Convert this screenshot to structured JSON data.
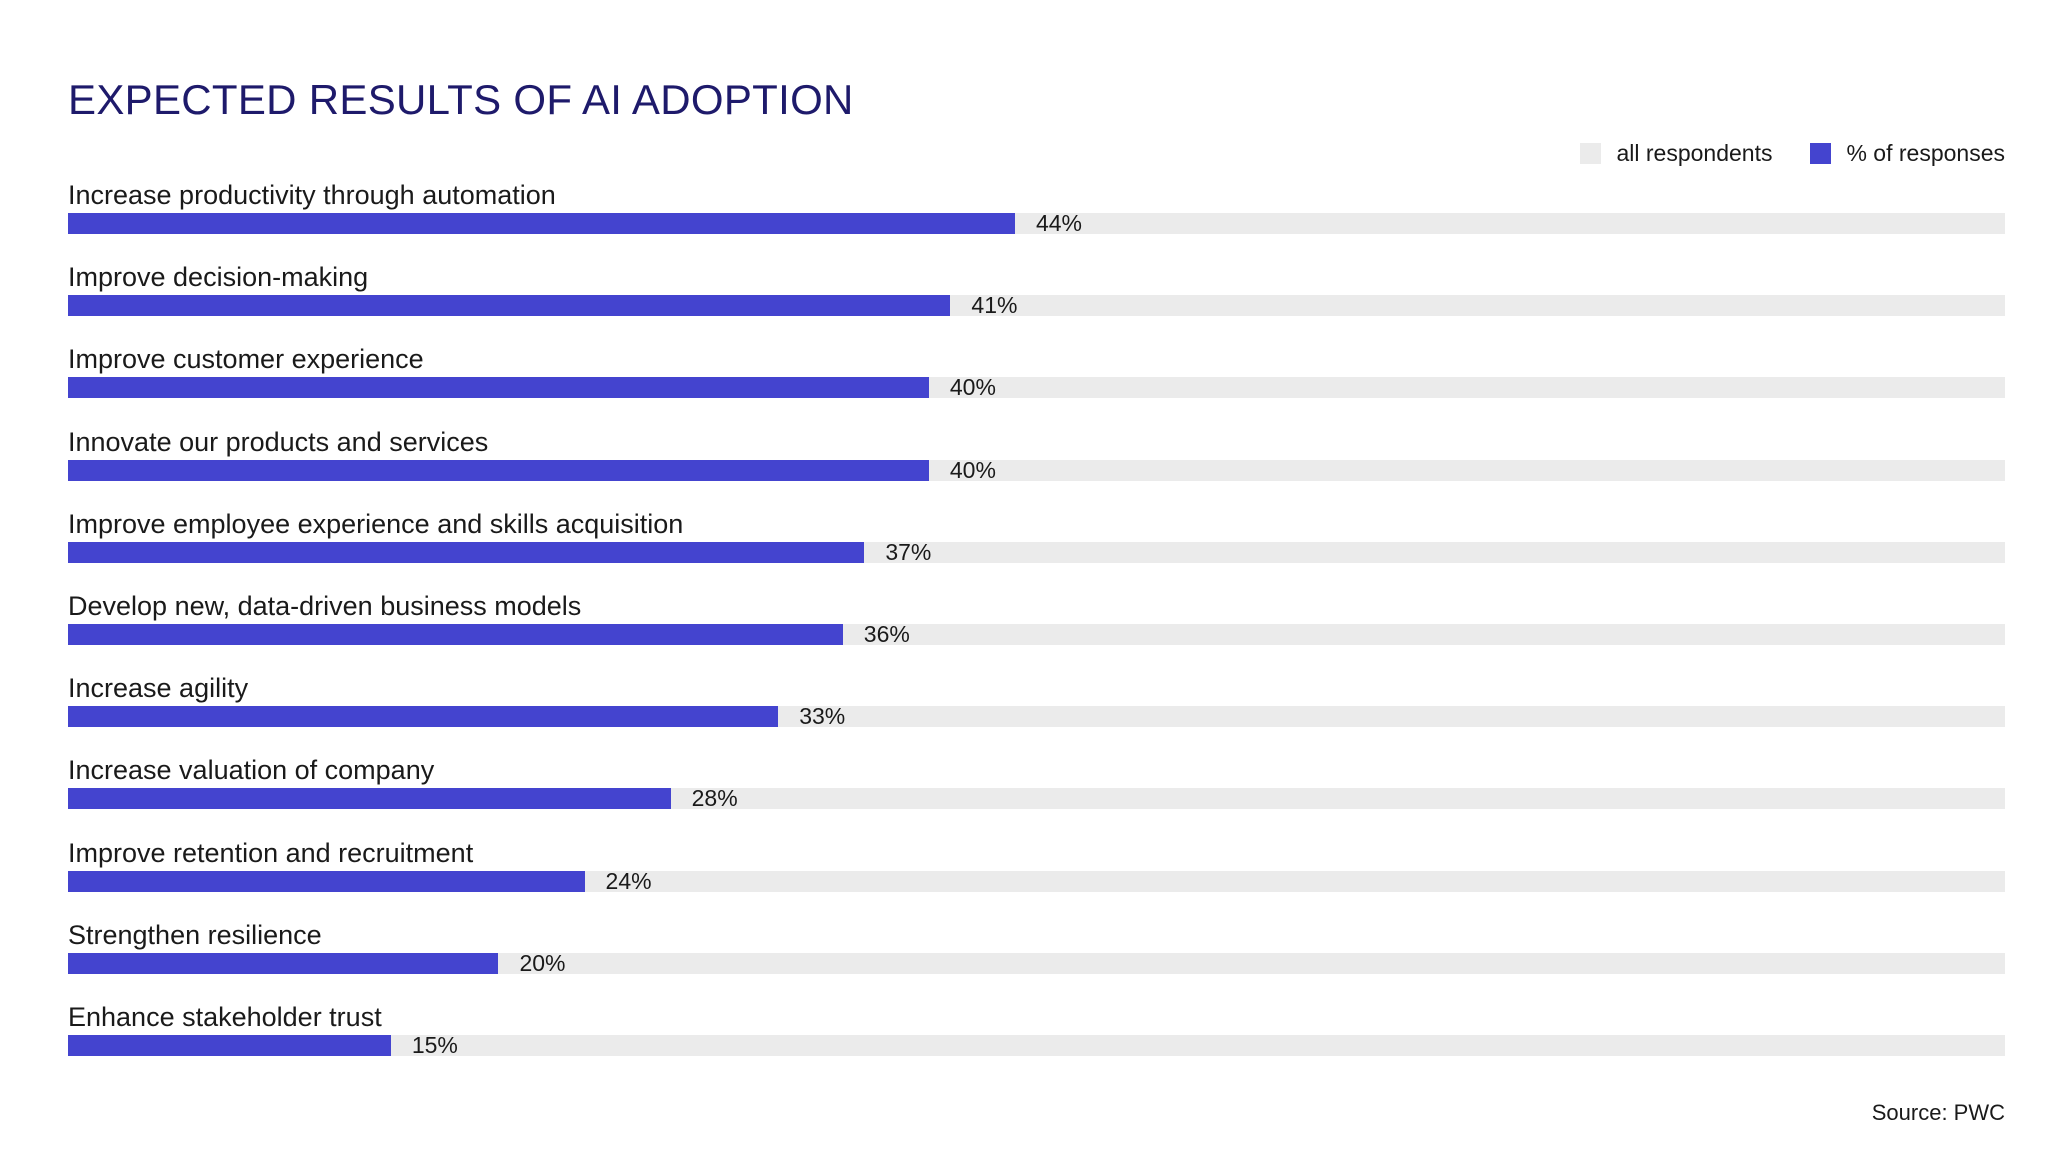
{
  "chart_data": {
    "type": "bar",
    "orientation": "horizontal",
    "title": "EXPECTED RESULTS OF AI ADOPTION",
    "xlim": [
      0,
      90
    ],
    "grid": false,
    "legend_position": "top-right",
    "legend": [
      "all respondents",
      "% of responses"
    ],
    "colors": {
      "all_respondents": "#ebebeb",
      "responses": "#4444cf",
      "title": "#1e1a6b"
    },
    "categories": [
      "Increase productivity through automation",
      "Improve decision-making",
      "Improve customer experience",
      "Innovate our products and services",
      "Improve employee experience and skills acquisition",
      "Develop new, data-driven business models",
      "Increase agility",
      "Increase valuation of company",
      "Improve retention and recruitment",
      "Strengthen resilience",
      "Enhance stakeholder trust"
    ],
    "values": [
      44,
      41,
      40,
      40,
      37,
      36,
      33,
      28,
      24,
      20,
      15
    ],
    "value_labels": [
      "44%",
      "41%",
      "40%",
      "40%",
      "37%",
      "36%",
      "33%",
      "28%",
      "24%",
      "20%",
      "15%"
    ],
    "source": "Source: PWC"
  }
}
